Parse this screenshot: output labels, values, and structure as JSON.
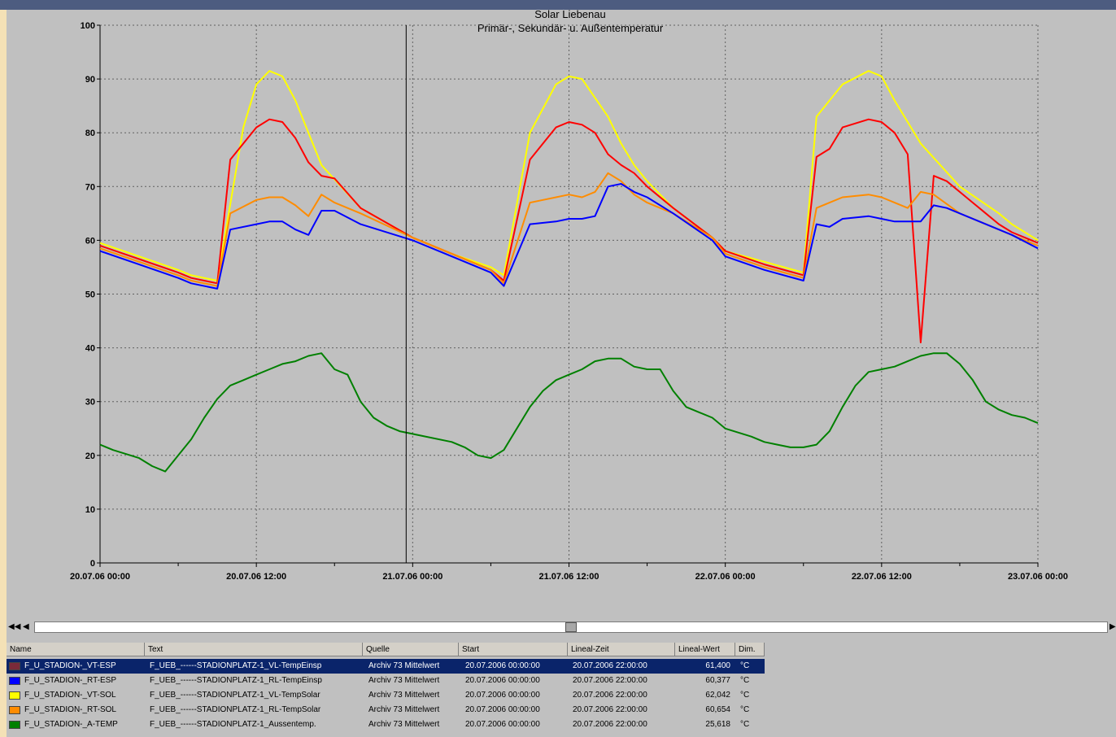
{
  "chart_data": {
    "type": "line",
    "title": "Solar Liebenau",
    "subtitle": "Primär-, Sekundär- u. Außentemperatur",
    "ylim": [
      0,
      100
    ],
    "yticks": [
      "0",
      "10",
      "20",
      "30",
      "40",
      "50",
      "60",
      "70",
      "80",
      "90",
      "100"
    ],
    "xticks": [
      "20.07.06 00:00",
      "20.07.06 12:00",
      "21.07.06 00:00",
      "21.07.06 12:00",
      "22.07.06 00:00",
      "22.07.06 12:00",
      "23.07.06 00:00"
    ],
    "grid": true,
    "cursor_x": 23.5,
    "series": [
      {
        "key": "yellow",
        "color": "#ffff00",
        "x": [
          0,
          3,
          6,
          7,
          9,
          11,
          12,
          13,
          14,
          15,
          17,
          20,
          24,
          27,
          30,
          31,
          33,
          35,
          36,
          37,
          39,
          40,
          41,
          42,
          44,
          47,
          48,
          51,
          54,
          55,
          57,
          59,
          60,
          61,
          62,
          63,
          66,
          69,
          70,
          72
        ],
        "y": [
          59.5,
          57,
          54.5,
          53.5,
          52.5,
          81,
          89,
          91.5,
          90.5,
          86,
          74,
          66,
          60.5,
          57.5,
          55,
          53.5,
          80,
          89,
          90.5,
          90,
          83,
          78,
          74,
          71,
          66,
          60.5,
          58,
          56,
          54,
          83,
          89,
          91.5,
          90.5,
          86,
          82,
          78,
          70,
          65,
          63,
          60
        ]
      },
      {
        "key": "red",
        "color": "#ff0000",
        "x": [
          0,
          3,
          6,
          7,
          9,
          10,
          12,
          13,
          14,
          15,
          16,
          17,
          18,
          20,
          24,
          27,
          30,
          31,
          33,
          35,
          36,
          37,
          38,
          39,
          40,
          41,
          42,
          44,
          47,
          48,
          51,
          54,
          55,
          56,
          57,
          59,
          60,
          61,
          62,
          63,
          64,
          65,
          66,
          67,
          68,
          69,
          70,
          72
        ],
        "y": [
          59,
          56.5,
          54,
          53,
          52,
          75,
          81,
          82.5,
          82,
          79,
          74.5,
          72,
          71.5,
          66,
          60.5,
          57.5,
          54.5,
          52.5,
          75,
          81,
          82,
          81.5,
          80,
          76,
          74,
          72.5,
          70,
          66,
          60.5,
          58,
          55.5,
          53.5,
          75.5,
          77,
          81,
          82.5,
          82,
          80,
          76,
          41,
          72,
          71,
          69,
          67,
          65,
          63,
          61.5,
          59.5
        ]
      },
      {
        "key": "orange",
        "color": "#ff8c00",
        "x": [
          0,
          3,
          6,
          7,
          9,
          10,
          12,
          13,
          14,
          15,
          16,
          17,
          18,
          20,
          24,
          27,
          30,
          31,
          33,
          34,
          35,
          36,
          37,
          38,
          39,
          40,
          41,
          42,
          44,
          47,
          48,
          51,
          54,
          55,
          56,
          57,
          59,
          60,
          61,
          62,
          63,
          64,
          66,
          69,
          70,
          72
        ],
        "y": [
          58.5,
          56,
          53.5,
          52.5,
          51.5,
          65,
          67.5,
          68,
          68,
          66.5,
          64.5,
          68.5,
          67,
          65,
          60.5,
          57.5,
          54.5,
          52,
          67,
          67.5,
          68,
          68.5,
          68,
          69,
          72.5,
          71,
          68.5,
          67,
          65,
          60.5,
          57.5,
          55,
          53,
          66,
          67,
          68,
          68.5,
          68,
          67,
          66,
          69,
          68.5,
          65,
          62,
          61,
          59
        ]
      },
      {
        "key": "blue",
        "color": "#0000ff",
        "x": [
          0,
          3,
          6,
          7,
          9,
          10,
          12,
          13,
          14,
          15,
          16,
          17,
          18,
          20,
          24,
          27,
          30,
          31,
          33,
          35,
          36,
          37,
          38,
          39,
          40,
          41,
          42,
          44,
          47,
          48,
          51,
          54,
          55,
          56,
          57,
          59,
          60,
          61,
          62,
          63,
          64,
          65,
          66,
          69,
          70,
          72
        ],
        "y": [
          58,
          55.5,
          53,
          52,
          51,
          62,
          63,
          63.5,
          63.5,
          62,
          61,
          65.5,
          65.5,
          63,
          60,
          57,
          54,
          51.5,
          63,
          63.5,
          64,
          64,
          64.5,
          70,
          70.5,
          69,
          68,
          65,
          60,
          57,
          54.5,
          52.5,
          63,
          62.5,
          64,
          64.5,
          64,
          63.5,
          63.5,
          63.5,
          66.5,
          66,
          65,
          62,
          61,
          58.5
        ]
      },
      {
        "key": "green",
        "color": "#008000",
        "x": [
          0,
          1,
          3,
          4,
          5,
          6,
          7,
          8,
          9,
          10,
          11,
          12,
          13,
          14,
          15,
          16,
          17,
          18,
          19,
          20,
          21,
          22,
          23,
          24,
          27,
          28,
          29,
          30,
          31,
          32,
          33,
          34,
          35,
          36,
          37,
          38,
          39,
          40,
          41,
          42,
          43,
          44,
          45,
          46,
          47,
          48,
          50,
          51,
          52,
          53,
          54,
          55,
          56,
          57,
          58,
          59,
          60,
          61,
          62,
          63,
          64,
          65,
          66,
          67,
          68,
          69,
          70,
          71,
          72
        ],
        "y": [
          22,
          21,
          19.5,
          18,
          17,
          20,
          23,
          27,
          30.5,
          33,
          34,
          35,
          36,
          37,
          37.5,
          38.5,
          39,
          36,
          35,
          30,
          27,
          25.5,
          24.5,
          24,
          22.5,
          21.5,
          20,
          19.5,
          21,
          25,
          29,
          32,
          34,
          35,
          36,
          37.5,
          38,
          38,
          36.5,
          36,
          36,
          32,
          29,
          28,
          27,
          25,
          23.5,
          22.5,
          22,
          21.5,
          21.5,
          22,
          24.5,
          29,
          33,
          35.5,
          36,
          36.5,
          37.5,
          38.5,
          39,
          39,
          37,
          34,
          30,
          28.5,
          27.5,
          27,
          26
        ]
      }
    ]
  },
  "scrollbar": {
    "first_label": "◀◀",
    "prev_label": "◀",
    "next_label": "▶",
    "thumb_fraction": 0.5
  },
  "table": {
    "columns": [
      "Name",
      "Text",
      "Quelle",
      "Start",
      "Lineal-Zeit",
      "Lineal-Wert",
      "Dim."
    ],
    "rows": [
      {
        "color": "#7a2a3a",
        "name": "F_U_STADION-_VT-ESP",
        "text": "F_UEB_------STADIONPLATZ-1_VL-TempEinsp",
        "quelle": "Archiv 73 Mittelwert",
        "start": "20.07.2006 00:00:00",
        "zeit": "20.07.2006 22:00:00",
        "wert": "61,400",
        "dim": "°C"
      },
      {
        "color": "#0000ff",
        "name": "F_U_STADION-_RT-ESP",
        "text": "F_UEB_------STADIONPLATZ-1_RL-TempEinsp",
        "quelle": "Archiv 73 Mittelwert",
        "start": "20.07.2006 00:00:00",
        "zeit": "20.07.2006 22:00:00",
        "wert": "60,377",
        "dim": "°C"
      },
      {
        "color": "#ffff00",
        "name": "F_U_STADION-_VT-SOL",
        "text": "F_UEB_------STADIONPLATZ-1_VL-TempSolar",
        "quelle": "Archiv 73 Mittelwert",
        "start": "20.07.2006 00:00:00",
        "zeit": "20.07.2006 22:00:00",
        "wert": "62,042",
        "dim": "°C"
      },
      {
        "color": "#ff8c00",
        "name": "F_U_STADION-_RT-SOL",
        "text": "F_UEB_------STADIONPLATZ-1_RL-TempSolar",
        "quelle": "Archiv 73 Mittelwert",
        "start": "20.07.2006 00:00:00",
        "zeit": "20.07.2006 22:00:00",
        "wert": "60,654",
        "dim": "°C"
      },
      {
        "color": "#008000",
        "name": "F_U_STADION-_A-TEMP",
        "text": "F_UEB_------STADIONPLATZ-1_Aussentemp.",
        "quelle": "Archiv 73 Mittelwert",
        "start": "20.07.2006 00:00:00",
        "zeit": "20.07.2006 22:00:00",
        "wert": "25,618",
        "dim": "°C"
      }
    ]
  }
}
